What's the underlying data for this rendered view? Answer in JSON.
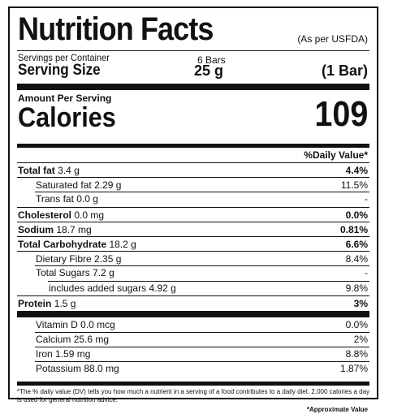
{
  "header": {
    "title": "Nutrition Facts",
    "standard": "(As per USFDA)"
  },
  "serving": {
    "per_container_label": "Servings per Container",
    "per_container_value": "6 Bars",
    "size_label": "Serving Size",
    "size_value": "25 g",
    "size_unit": "(1 Bar)"
  },
  "calories": {
    "amount_label": "Amount Per Serving",
    "label": "Calories",
    "value": "109"
  },
  "daily_value_header": "%Daily Value*",
  "nutrients": [
    {
      "name": "Total fat",
      "amount": "3.4 g",
      "dv": "4.4%"
    },
    {
      "name": "Saturated fat",
      "amount": "2.29 g",
      "dv": "11.5%"
    },
    {
      "name": "Trans fat",
      "amount": "0.0 g",
      "dv": "-"
    },
    {
      "name": "Cholesterol",
      "amount": "0.0 mg",
      "dv": "0.0%"
    },
    {
      "name": "Sodium",
      "amount": "18.7 mg",
      "dv": "0.81%"
    },
    {
      "name": "Total Carbohydrate",
      "amount": "18.2 g",
      "dv": "6.6%"
    },
    {
      "name": "Dietary Fibre",
      "amount": "2.35 g",
      "dv": "8.4%"
    },
    {
      "name": "Total Sugars",
      "amount": "7.2 g",
      "dv": "-"
    },
    {
      "name": "includes added sugars",
      "amount": "4.92 g",
      "dv": "9.8%"
    },
    {
      "name": "Protein",
      "amount": "1.5 g",
      "dv": "3%"
    }
  ],
  "vitamins": [
    {
      "name": "Vitamin D",
      "amount": "0.0 mcg",
      "dv": "0.0%"
    },
    {
      "name": "Calcium",
      "amount": "25.6 mg",
      "dv": "2%"
    },
    {
      "name": "Iron",
      "amount": "1.59 mg",
      "dv": "8.8%"
    },
    {
      "name": "Potassium",
      "amount": "88.0 mg",
      "dv": "1.87%"
    }
  ],
  "footnote": {
    "text": "*The % daily value (DV) tells you how much a nutrient in a serving of a food contributes to a daily diet. 2,000 calories a day is used for general nutrition advice.",
    "approx": "*Approximate Value"
  }
}
